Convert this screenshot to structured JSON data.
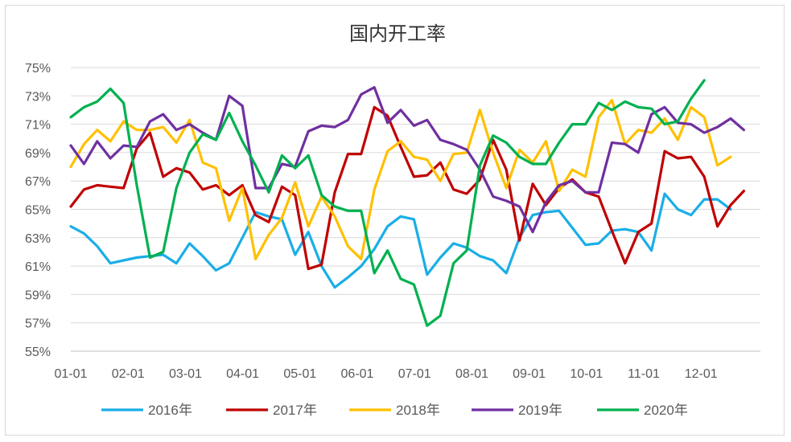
{
  "chart_data": {
    "type": "line",
    "title": "国内开工率",
    "xlabel": "",
    "ylabel": "",
    "ylim": [
      55,
      75
    ],
    "yticks": [
      "55%",
      "57%",
      "59%",
      "61%",
      "63%",
      "65%",
      "67%",
      "69%",
      "71%",
      "73%",
      "75%"
    ],
    "x_tick_labels": [
      "01-01",
      "02-01",
      "03-01",
      "04-01",
      "05-01",
      "06-01",
      "07-01",
      "08-01",
      "09-01",
      "10-01",
      "11-01",
      "12-01"
    ],
    "x_unit": "week of year (0 = 01-01, ~4.3 weeks per month)",
    "legend_position": "bottom",
    "grid": "horizontal",
    "series": [
      {
        "name": "2016年",
        "color": "#1aaee6",
        "x": [
          0,
          1,
          2,
          3,
          4,
          5,
          6,
          7,
          8,
          9,
          10,
          11,
          12,
          13,
          14,
          15,
          16,
          17,
          18,
          19,
          20,
          21,
          22,
          23,
          24,
          25,
          26,
          27,
          28,
          29,
          30,
          31,
          32,
          33,
          34,
          35,
          36,
          37,
          38,
          39,
          40,
          41,
          42,
          43,
          44,
          45,
          46,
          47,
          48,
          49,
          50,
          51
        ],
        "values": [
          63.8,
          63.3,
          62.4,
          61.2,
          61.4,
          61.6,
          61.7,
          61.8,
          61.2,
          62.6,
          61.7,
          60.7,
          61.2,
          63.0,
          64.8,
          64.5,
          64.3,
          61.8,
          63.4,
          61.0,
          59.5,
          60.2,
          61.0,
          62.2,
          63.8,
          64.5,
          64.3,
          60.4,
          61.6,
          62.6,
          62.3,
          61.7,
          61.4,
          60.5,
          63.0,
          64.6,
          64.8,
          64.9,
          63.7,
          62.5,
          62.6,
          63.5,
          63.6,
          63.4,
          62.1,
          66.1,
          65.0,
          64.6,
          65.7,
          65.7,
          65.0,
          null
        ]
      },
      {
        "name": "2017年",
        "color": "#c00000",
        "x": [
          0,
          1,
          2,
          3,
          4,
          5,
          6,
          7,
          8,
          9,
          10,
          11,
          12,
          13,
          14,
          15,
          16,
          17,
          18,
          19,
          20,
          21,
          22,
          23,
          24,
          25,
          26,
          27,
          28,
          29,
          30,
          31,
          32,
          33,
          34,
          35,
          36,
          37,
          38,
          39,
          40,
          41,
          42,
          43,
          44,
          45,
          46,
          47,
          48,
          49,
          50,
          51
        ],
        "values": [
          65.2,
          66.4,
          66.7,
          66.6,
          66.5,
          69.3,
          70.4,
          67.3,
          67.9,
          67.6,
          66.4,
          66.7,
          66.0,
          66.7,
          64.6,
          64.1,
          66.6,
          66.0,
          60.8,
          61.1,
          66.2,
          68.9,
          68.9,
          72.2,
          71.6,
          69.4,
          67.3,
          67.4,
          68.3,
          66.4,
          66.1,
          67.1,
          69.9,
          67.8,
          62.8,
          66.8,
          65.3,
          66.5,
          67.1,
          66.2,
          65.9,
          63.5,
          61.2,
          63.4,
          64.0,
          69.1,
          68.6,
          68.7,
          67.3,
          63.8,
          65.3,
          66.3
        ]
      },
      {
        "name": "2018年",
        "color": "#ffc000",
        "x": [
          0,
          1,
          2,
          3,
          4,
          5,
          6,
          7,
          8,
          9,
          10,
          11,
          12,
          13,
          14,
          15,
          16,
          17,
          18,
          19,
          20,
          21,
          22,
          23,
          24,
          25,
          26,
          27,
          28,
          29,
          30,
          31,
          32,
          33,
          34,
          35,
          36,
          37,
          38,
          39,
          40,
          41,
          42,
          43,
          44,
          45,
          46,
          47,
          48,
          49,
          50,
          51
        ],
        "values": [
          68.0,
          69.6,
          70.6,
          69.8,
          71.2,
          70.6,
          70.6,
          70.8,
          69.7,
          71.3,
          68.3,
          67.9,
          64.2,
          66.5,
          61.5,
          63.2,
          64.4,
          66.9,
          63.8,
          65.9,
          64.5,
          62.4,
          61.5,
          66.4,
          69.1,
          69.8,
          68.7,
          68.5,
          67.0,
          68.9,
          69.0,
          72.0,
          69.0,
          66.5,
          69.2,
          68.3,
          69.8,
          66.3,
          67.8,
          67.3,
          71.5,
          72.7,
          69.6,
          70.6,
          70.4,
          71.4,
          69.9,
          72.2,
          71.5,
          68.1,
          68.7,
          null
        ]
      },
      {
        "name": "2019年",
        "color": "#7030a0",
        "x": [
          0,
          1,
          2,
          3,
          4,
          5,
          6,
          7,
          8,
          9,
          10,
          11,
          12,
          13,
          14,
          15,
          16,
          17,
          18,
          19,
          20,
          21,
          22,
          23,
          24,
          25,
          26,
          27,
          28,
          29,
          30,
          31,
          32,
          33,
          34,
          35,
          36,
          37,
          38,
          39,
          40,
          41,
          42,
          43,
          44,
          45,
          46,
          47,
          48,
          49,
          50,
          51
        ],
        "values": [
          69.5,
          68.2,
          69.8,
          68.6,
          69.5,
          69.4,
          71.2,
          71.7,
          70.6,
          71.0,
          70.4,
          69.9,
          73.0,
          72.3,
          66.5,
          66.5,
          68.2,
          68.0,
          70.5,
          70.9,
          70.8,
          71.3,
          73.1,
          73.6,
          71.1,
          72.0,
          70.9,
          71.3,
          69.9,
          69.6,
          69.2,
          67.8,
          65.9,
          65.6,
          65.2,
          63.4,
          65.5,
          66.7,
          67.0,
          66.2,
          66.2,
          69.7,
          69.6,
          69.0,
          71.7,
          72.2,
          71.1,
          71.0,
          70.4,
          70.8,
          71.4,
          70.6
        ]
      },
      {
        "name": "2020年",
        "color": "#00b050",
        "x": [
          0,
          1,
          2,
          3,
          4,
          5,
          6,
          7,
          8,
          9,
          10,
          11,
          12,
          13,
          14,
          15,
          16,
          17,
          18,
          19,
          20,
          21,
          22,
          23,
          24,
          25,
          26,
          27,
          28,
          29,
          30,
          31,
          32,
          33,
          34,
          35,
          36,
          37,
          38,
          39,
          40,
          41,
          42,
          43,
          44,
          45,
          46,
          47,
          48
        ],
        "values": [
          71.5,
          72.2,
          72.6,
          73.5,
          72.5,
          66.7,
          61.6,
          62.0,
          66.5,
          69.0,
          70.3,
          69.9,
          71.8,
          69.8,
          68.1,
          66.2,
          68.8,
          67.9,
          68.8,
          66.0,
          65.2,
          64.9,
          64.9,
          60.5,
          62.1,
          60.1,
          59.7,
          56.8,
          57.5,
          61.2,
          62.1,
          68.1,
          70.2,
          69.7,
          68.7,
          68.2,
          68.2,
          69.7,
          71.0,
          71.0,
          72.5,
          72.0,
          72.6,
          72.2,
          72.1,
          71.0,
          71.2,
          72.8,
          74.1
        ]
      }
    ]
  }
}
